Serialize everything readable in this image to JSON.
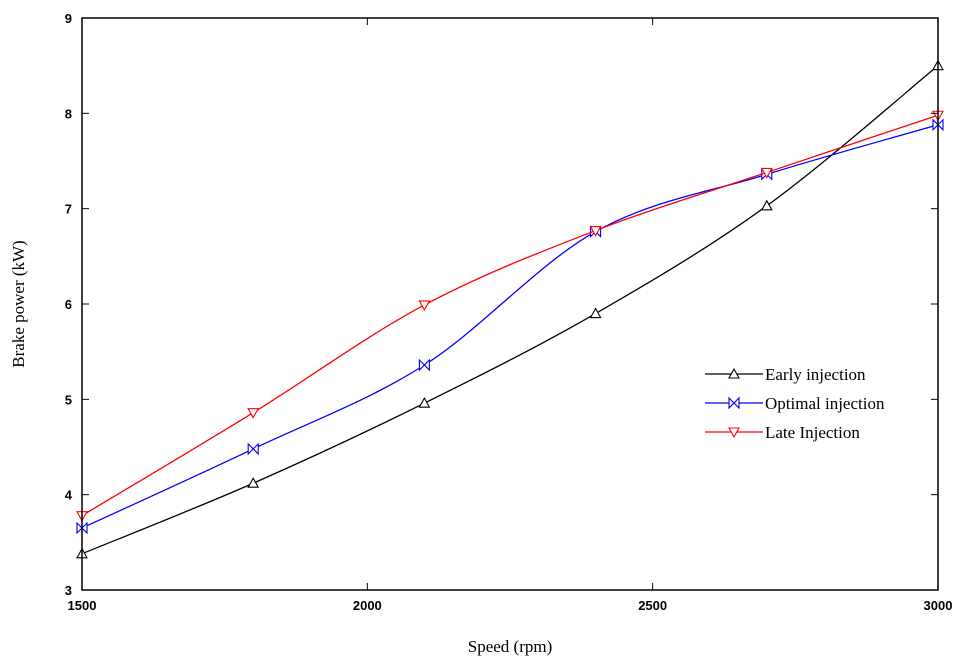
{
  "chart_data": {
    "type": "line",
    "title": "",
    "xlabel": "Speed (rpm)",
    "ylabel": "Brake power (kW)",
    "xlim": [
      1500,
      3000
    ],
    "ylim": [
      3,
      9
    ],
    "xticks": [
      1500,
      2000,
      2500,
      3000
    ],
    "yticks": [
      3,
      4,
      5,
      6,
      7,
      8,
      9
    ],
    "x": [
      1500,
      1800,
      2100,
      2400,
      2700,
      3000
    ],
    "legend_position": "right-middle",
    "grid": false,
    "series": [
      {
        "name": "Early injection",
        "color": "#000000",
        "marker": "triangle-up",
        "values": [
          3.38,
          4.12,
          4.96,
          5.9,
          7.03,
          8.5
        ]
      },
      {
        "name": "Optimal injection",
        "color": "#0000ff",
        "marker": "bowtie",
        "values": [
          3.65,
          4.48,
          5.36,
          6.76,
          7.36,
          7.88
        ]
      },
      {
        "name": "Late Injection",
        "color": "#ff0000",
        "marker": "triangle-down",
        "values": [
          3.78,
          4.86,
          5.99,
          6.77,
          7.38,
          7.98
        ]
      }
    ]
  }
}
